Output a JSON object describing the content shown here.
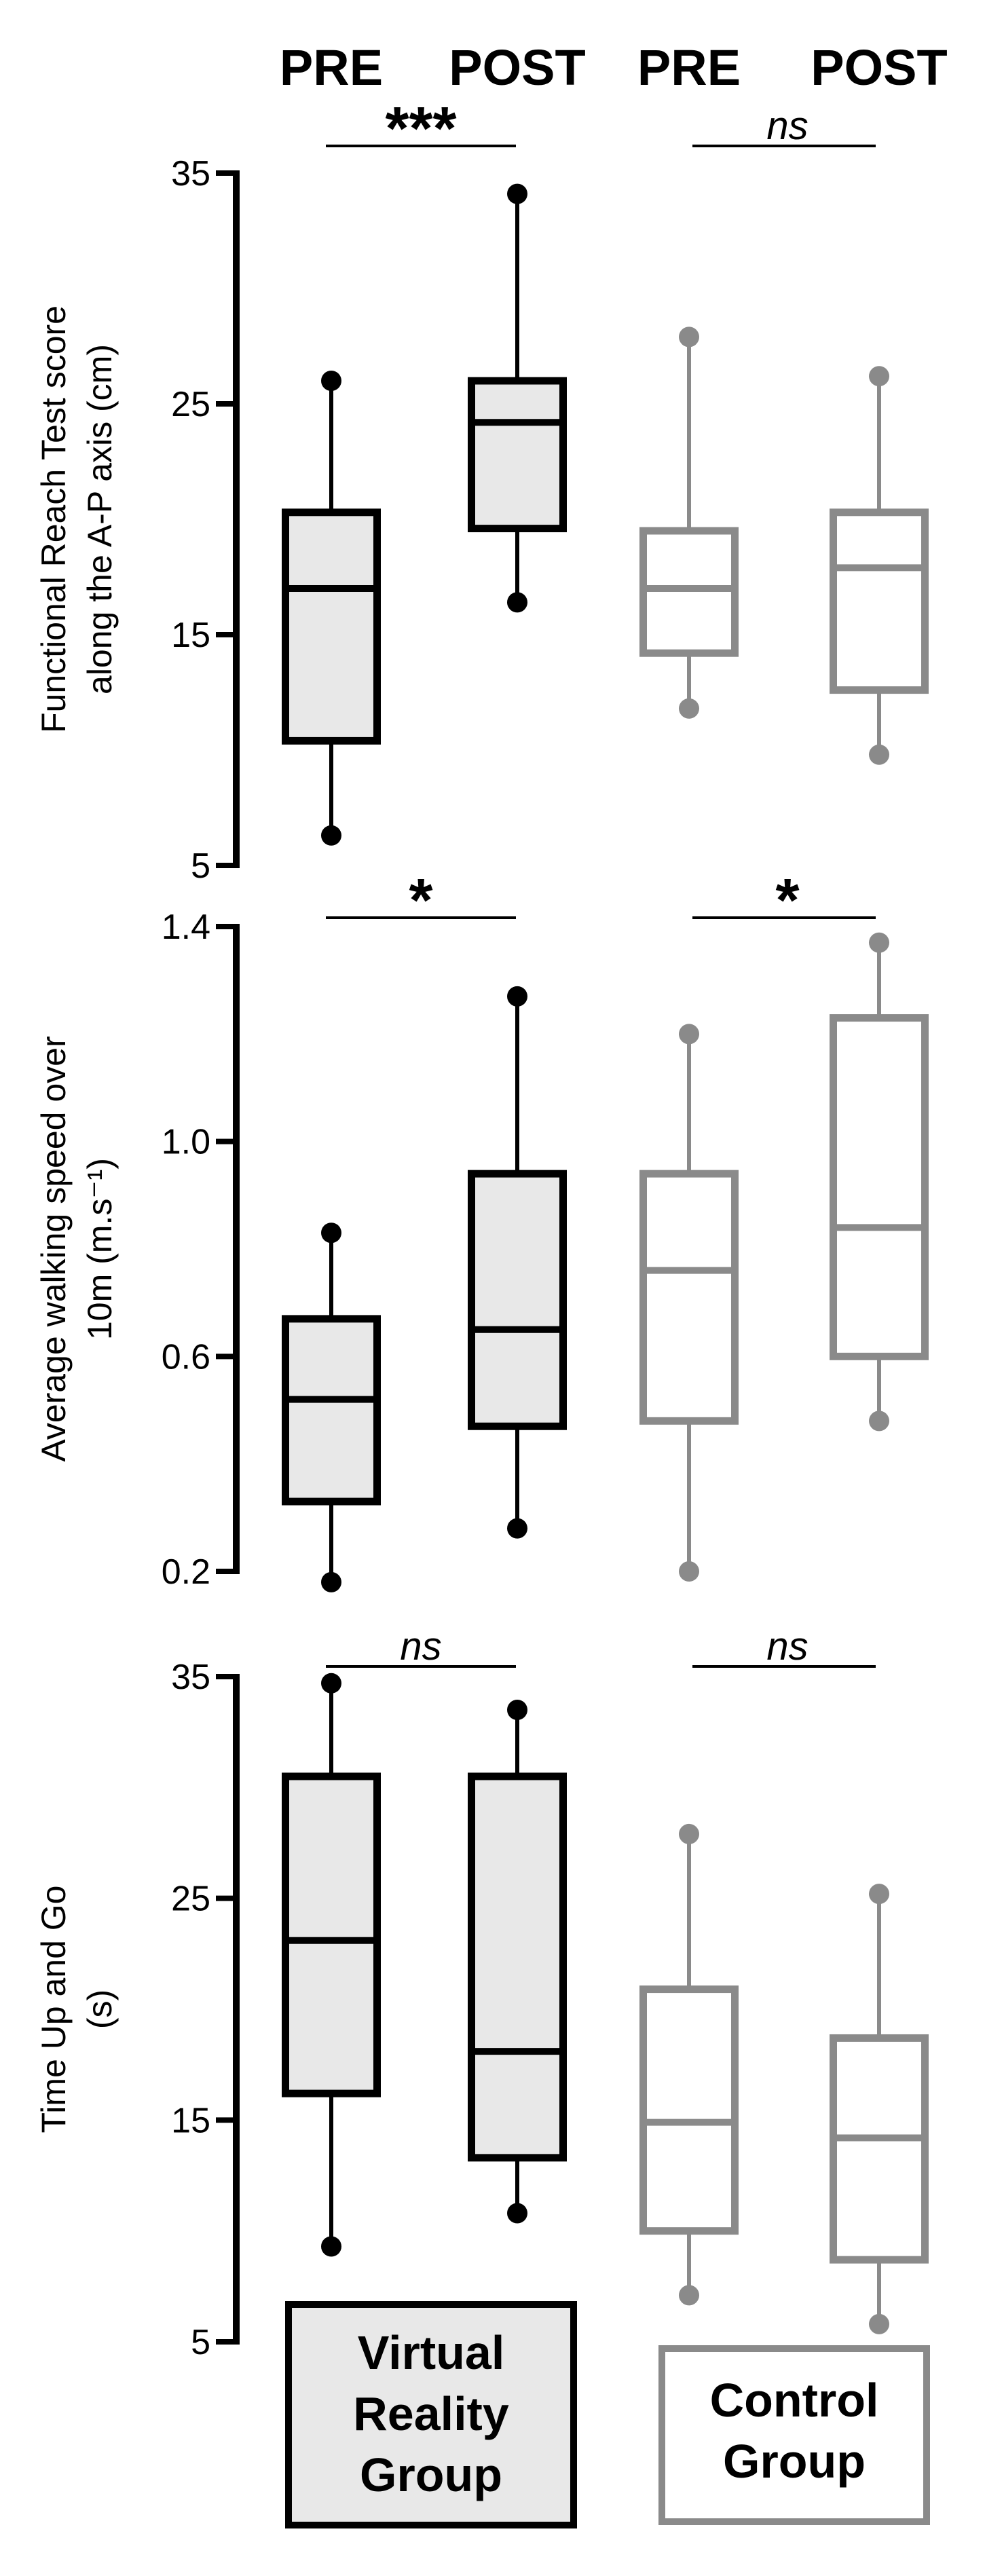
{
  "header": {
    "labels": [
      "PRE",
      "POST",
      "PRE",
      "POST"
    ]
  },
  "groups": [
    {
      "name_lines": [
        "Virtual",
        "Reality",
        "Group"
      ],
      "color": "#000000",
      "fill": "#e8e8e8"
    },
    {
      "name_lines": [
        "Control",
        "Group"
      ],
      "color": "#8a8a8a",
      "fill": "#ffffff"
    }
  ],
  "chart_data": [
    {
      "type": "box",
      "ylabel_lines": [
        "Functional Reach Test score",
        "along the A-P axis (cm)"
      ],
      "ylim": [
        5,
        35
      ],
      "yticks": [
        5,
        15,
        25,
        35
      ],
      "boxes": [
        {
          "group": 0,
          "label": "PRE",
          "whisker_low": 6.3,
          "q1": 10.4,
          "median": 17.0,
          "q3": 20.3,
          "whisker_high": 26.0
        },
        {
          "group": 0,
          "label": "POST",
          "whisker_low": 16.4,
          "q1": 19.6,
          "median": 24.2,
          "q3": 26.0,
          "whisker_high": 34.1
        },
        {
          "group": 1,
          "label": "PRE",
          "whisker_low": 11.8,
          "q1": 14.2,
          "median": 17.0,
          "q3": 19.5,
          "whisker_high": 27.9
        },
        {
          "group": 1,
          "label": "POST",
          "whisker_low": 9.8,
          "q1": 12.6,
          "median": 17.9,
          "q3": 20.3,
          "whisker_high": 26.2
        }
      ],
      "significance": [
        {
          "group": 0,
          "label": "***",
          "italic": false
        },
        {
          "group": 1,
          "label": "ns",
          "italic": true
        }
      ]
    },
    {
      "type": "box",
      "ylabel_lines": [
        "Average walking speed over",
        "10m (m.s⁻¹)"
      ],
      "ylim": [
        0.2,
        1.4
      ],
      "yticks": [
        0.2,
        0.6,
        1.0,
        1.4
      ],
      "ytick_labels": [
        "0.2",
        "0.6",
        "1.0",
        "1.4"
      ],
      "boxes": [
        {
          "group": 0,
          "label": "PRE",
          "whisker_low": 0.18,
          "q1": 0.33,
          "median": 0.52,
          "q3": 0.67,
          "whisker_high": 0.83
        },
        {
          "group": 0,
          "label": "POST",
          "whisker_low": 0.28,
          "q1": 0.47,
          "median": 0.65,
          "q3": 0.94,
          "whisker_high": 1.27
        },
        {
          "group": 1,
          "label": "PRE",
          "whisker_low": 0.2,
          "q1": 0.48,
          "median": 0.76,
          "q3": 0.94,
          "whisker_high": 1.2
        },
        {
          "group": 1,
          "label": "POST",
          "whisker_low": 0.48,
          "q1": 0.6,
          "median": 0.84,
          "q3": 1.23,
          "whisker_high": 1.37
        }
      ],
      "significance": [
        {
          "group": 0,
          "label": "*",
          "italic": false
        },
        {
          "group": 1,
          "label": "*",
          "italic": false
        }
      ]
    },
    {
      "type": "box",
      "ylabel_lines": [
        "Time Up and Go",
        "(s)"
      ],
      "ylim": [
        5,
        35
      ],
      "yticks": [
        5,
        15,
        25,
        35
      ],
      "boxes": [
        {
          "group": 0,
          "label": "PRE",
          "whisker_low": 9.3,
          "q1": 16.2,
          "median": 23.1,
          "q3": 30.5,
          "whisker_high": 34.7
        },
        {
          "group": 0,
          "label": "POST",
          "whisker_low": 10.8,
          "q1": 13.3,
          "median": 18.1,
          "q3": 30.5,
          "whisker_high": 33.5
        },
        {
          "group": 1,
          "label": "PRE",
          "whisker_low": 7.1,
          "q1": 10.0,
          "median": 14.9,
          "q3": 20.9,
          "whisker_high": 27.9
        },
        {
          "group": 1,
          "label": "POST",
          "whisker_low": 5.8,
          "q1": 8.7,
          "median": 14.2,
          "q3": 18.7,
          "whisker_high": 25.2
        }
      ],
      "significance": [
        {
          "group": 0,
          "label": "ns",
          "italic": true
        },
        {
          "group": 1,
          "label": "ns",
          "italic": true
        }
      ]
    }
  ]
}
